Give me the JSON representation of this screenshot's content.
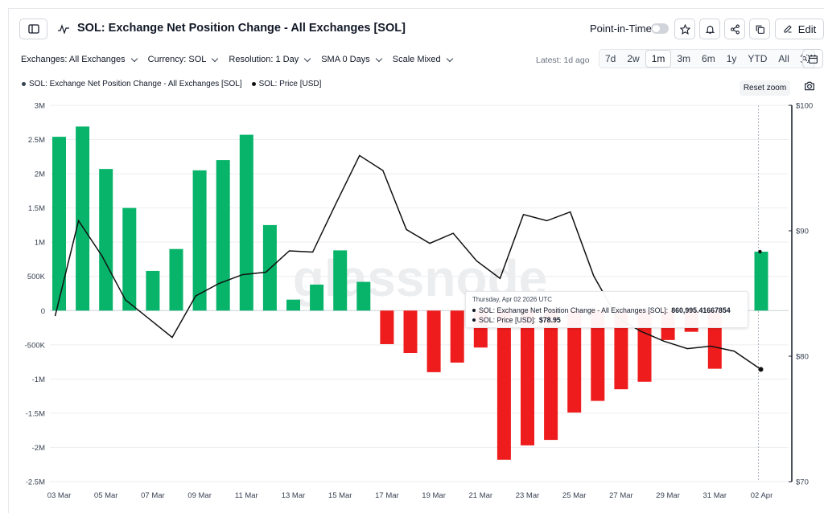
{
  "header": {
    "title": "SOL: Exchange Net Position Change - All Exchanges [SOL]",
    "point_in_time_label": "Point-in-Time",
    "edit_label": "Edit"
  },
  "toolbar": {
    "filters": [
      {
        "label": "Exchanges: All Exchanges"
      },
      {
        "label": "Currency: SOL"
      },
      {
        "label": "Resolution: 1 Day"
      },
      {
        "label": "SMA 0 Days"
      },
      {
        "label": "Scale Mixed"
      }
    ],
    "latest": "Latest: 1d ago",
    "ranges": [
      "7d",
      "2w",
      "1m",
      "3m",
      "6m",
      "1y",
      "YTD",
      "All"
    ],
    "active_range": "1m"
  },
  "legend": {
    "series_1": "SOL: Exchange Net Position Change - All Exchanges [SOL]",
    "series_2": "SOL: Price [USD]",
    "reset_zoom": "Reset zoom"
  },
  "tooltip": {
    "date": "Thursday, Apr 02 2026 UTC",
    "row_1_label": "SOL: Exchange Net Position Change - All Exchanges [SOL]:",
    "row_1_value": "860,995.41667854",
    "row_2_label": "SOL: Price [USD]:",
    "row_2_value": "$78.95"
  },
  "watermark": "glassnode",
  "colors": {
    "positive": "#07b46a",
    "negative": "#ee1c1c",
    "price_line": "#111111",
    "grid": "#eceef1"
  },
  "chart_data": {
    "type": "bar",
    "x_tick_labels": [
      "03 Mar",
      "05 Mar",
      "07 Mar",
      "09 Mar",
      "11 Mar",
      "13 Mar",
      "15 Mar",
      "17 Mar",
      "19 Mar",
      "21 Mar",
      "23 Mar",
      "25 Mar",
      "27 Mar",
      "29 Mar",
      "31 Mar",
      "02 Apr"
    ],
    "categories": [
      "03 Mar",
      "04 Mar",
      "05 Mar",
      "06 Mar",
      "07 Mar",
      "08 Mar",
      "09 Mar",
      "10 Mar",
      "11 Mar",
      "12 Mar",
      "13 Mar",
      "14 Mar",
      "15 Mar",
      "16 Mar",
      "17 Mar",
      "18 Mar",
      "19 Mar",
      "20 Mar",
      "21 Mar",
      "22 Mar",
      "23 Mar",
      "24 Mar",
      "25 Mar",
      "26 Mar",
      "27 Mar",
      "28 Mar",
      "29 Mar",
      "30 Mar",
      "31 Mar",
      "01 Apr",
      "02 Apr"
    ],
    "series": [
      {
        "name": "SOL: Exchange Net Position Change - All Exchanges [SOL]",
        "type": "bar",
        "axis": "left",
        "values": [
          2540000,
          2690000,
          2070000,
          1500000,
          580000,
          900000,
          2050000,
          2200000,
          2570000,
          1250000,
          160000,
          380000,
          880000,
          420000,
          -490000,
          -620000,
          -900000,
          -760000,
          -540000,
          -2180000,
          -1970000,
          -1890000,
          -1490000,
          -1320000,
          -1150000,
          -1040000,
          -430000,
          -310000,
          -850000,
          null,
          860995.41667854
        ]
      },
      {
        "name": "SOL: Price [USD]",
        "type": "line",
        "axis": "right",
        "values": [
          83.2,
          90.8,
          88.0,
          84.5,
          83.0,
          81.5,
          84.8,
          85.8,
          86.5,
          86.7,
          88.4,
          88.3,
          92.2,
          96.0,
          94.8,
          90.1,
          89.0,
          89.8,
          87.6,
          86.2,
          91.3,
          90.8,
          91.5,
          86.4,
          83.1,
          82.0,
          81.2,
          80.6,
          80.8,
          80.4,
          78.95
        ]
      }
    ],
    "y_left": {
      "ticks": [
        "3M",
        "2.5M",
        "2M",
        "1.5M",
        "1M",
        "500K",
        "0",
        "-500K",
        "-1M",
        "-1.5M",
        "-2M",
        "-2.5M"
      ],
      "ylim": [
        -2500000,
        3000000
      ]
    },
    "y_right": {
      "ticks": [
        "$100",
        "$90",
        "$80",
        "$70"
      ],
      "ylim": [
        70,
        100
      ]
    },
    "grid": true,
    "legend_position": "top-left"
  }
}
